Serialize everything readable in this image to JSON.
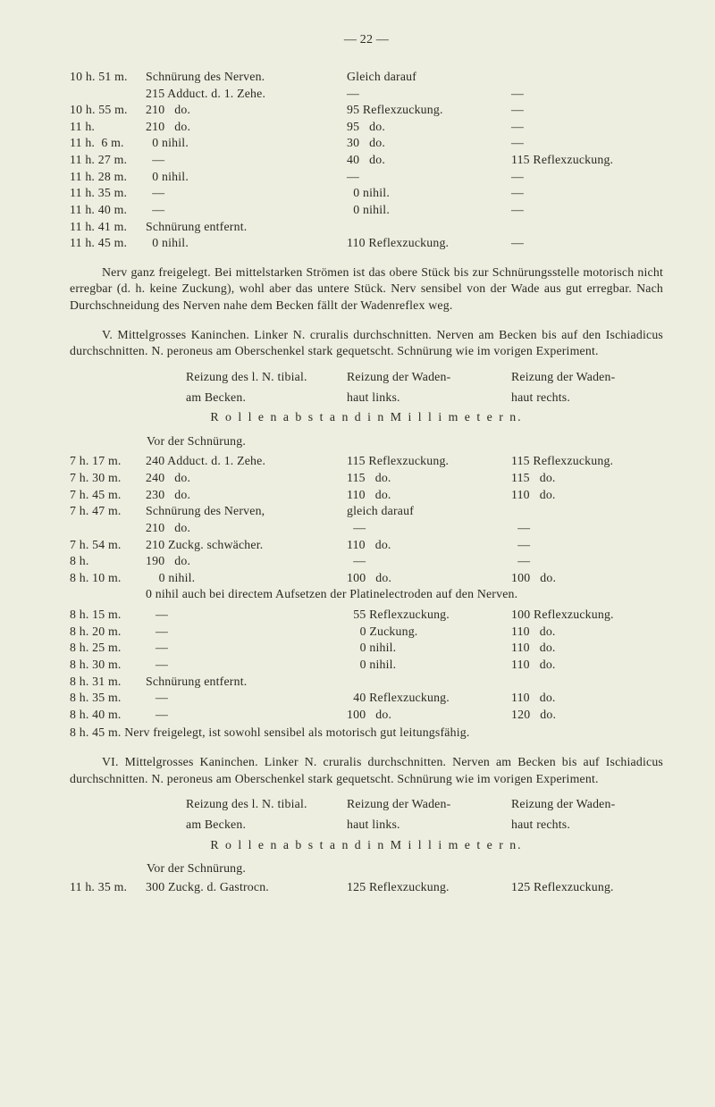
{
  "pageNum": "—  22  —",
  "sectionA": {
    "rows": [
      {
        "a": "10 h. 51 m.",
        "b": "Schnürung des Nerven.",
        "c": "Gleich darauf",
        "d": ""
      },
      {
        "a": "",
        "b": "215 Adduct. d. 1. Zehe.",
        "c": "—",
        "d": "—"
      },
      {
        "a": "10 h. 55 m.",
        "b": "210   do.",
        "c": "95 Reflexzuckung.",
        "d": "—"
      },
      {
        "a": "11 h.",
        "b": "210   do.",
        "c": "95   do.",
        "d": "—"
      },
      {
        "a": "11 h.  6 m.",
        "b": "  0 nihil.",
        "c": "30   do.",
        "d": "—"
      },
      {
        "a": "11 h. 27 m.",
        "b": "  —",
        "c": "40   do.",
        "d": "115 Reflexzuckung."
      },
      {
        "a": "11 h. 28 m.",
        "b": "  0 nihil.",
        "c": "—",
        "d": "—"
      },
      {
        "a": "11 h. 35 m.",
        "b": "  —",
        "c": "  0 nihil.",
        "d": "—"
      },
      {
        "a": "11 h. 40 m.",
        "b": "  —",
        "c": "  0 nihil.",
        "d": "—"
      },
      {
        "a": "11 h. 41 m.",
        "b": "Schnürung entfernt.",
        "c": "",
        "d": ""
      },
      {
        "a": "11 h. 45 m.",
        "b": "  0 nihil.",
        "c": "110 Reflexzuckung.",
        "d": "—"
      }
    ]
  },
  "para1": "Nerv ganz freigelegt. Bei mittelstarken Strömen ist das obere Stück bis zur Schnürungsstelle motorisch nicht erregbar (d. h. keine Zuckung), wohl aber das untere Stück. Nerv sensibel von der Wade aus gut erregbar. Nach Durchschneidung des Nerven nahe dem Becken fällt der Wadenreflex weg.",
  "para2": "V. Mittelgrosses Kaninchen. Linker N. cruralis durchschnitten. Nerven am Becken bis auf den Ischiadicus durchschnitten. N. peroneus am Oberschenkel stark gequetscht. Schnürung wie im vorigen Experiment.",
  "head": {
    "l1a": "Reizung des l. N. tibial.",
    "l1b": "Reizung der Waden-",
    "l1c": "Reizung der Waden-",
    "l2a": "am Becken.",
    "l2b": "haut links.",
    "l2c": "haut rechts."
  },
  "rollen": "R o l l e n a b s t a n d   i n   M i l l i m e t e r n.",
  "vor": "Vor der Schnürung.",
  "sectionB": {
    "rows": [
      {
        "a": "7 h. 17 m.",
        "b": "240 Adduct. d. 1. Zehe.",
        "c": "115 Reflexzuckung.",
        "d": "115 Reflexzuckung."
      },
      {
        "a": "7 h. 30 m.",
        "b": "240   do.",
        "c": "115   do.",
        "d": "115   do."
      },
      {
        "a": "7 h. 45 m.",
        "b": "230   do.",
        "c": "110   do.",
        "d": "110   do."
      },
      {
        "a": "7 h. 47 m.",
        "b": "Schnürung des Nerven,",
        "c": "gleich darauf",
        "d": ""
      },
      {
        "a": "",
        "b": "210   do.",
        "c": "  —",
        "d": "  —"
      },
      {
        "a": "7 h. 54 m.",
        "b": "210 Zuckg. schwächer.",
        "c": "110   do.",
        "d": "  —"
      },
      {
        "a": "8 h.",
        "b": "190   do.",
        "c": "  —",
        "d": "  —"
      },
      {
        "a": "8 h. 10 m.",
        "b": "    0 nihil.",
        "c": "100   do.",
        "d": "100   do."
      }
    ],
    "mid": "0 nihil auch bei directem Aufsetzen der Platinelectroden auf den Nerven.",
    "rows2": [
      {
        "a": "8 h. 15 m.",
        "b": "   —",
        "c": "  55 Reflexzuckung.",
        "d": "100 Reflexzuckung."
      },
      {
        "a": "8 h. 20 m.",
        "b": "   —",
        "c": "    0 Zuckung.",
        "d": "110   do."
      },
      {
        "a": "8 h. 25 m.",
        "b": "   —",
        "c": "    0 nihil.",
        "d": "110   do."
      },
      {
        "a": "8 h. 30 m.",
        "b": "   —",
        "c": "    0 nihil.",
        "d": "110   do."
      },
      {
        "a": "8 h. 31 m.",
        "b": "Schnürung entfernt.",
        "c": "",
        "d": ""
      },
      {
        "a": "8 h. 35 m.",
        "b": "   —",
        "c": "  40 Reflexzuckung.",
        "d": "110   do."
      },
      {
        "a": "8 h. 40 m.",
        "b": "   —",
        "c": "100   do.",
        "d": "120   do."
      }
    ],
    "tail": "8 h. 45 m. Nerv freigelegt, ist sowohl sensibel als motorisch gut leitungsfähig."
  },
  "para3": "VI. Mittelgrosses Kaninchen. Linker N. cruralis durchschnitten. Nerven am Becken bis auf Ischiadicus durchschnitten. N. peroneus am Oberschenkel stark gequetscht. Schnürung wie im vorigen Experiment.",
  "foot": {
    "vor": "Vor der Schnürung.",
    "row": {
      "a": "11 h. 35 m.",
      "b": "300 Zuckg. d. Gastrocn.",
      "c": "125 Reflexzuckung.",
      "d": "125 Reflexzuckung."
    }
  }
}
